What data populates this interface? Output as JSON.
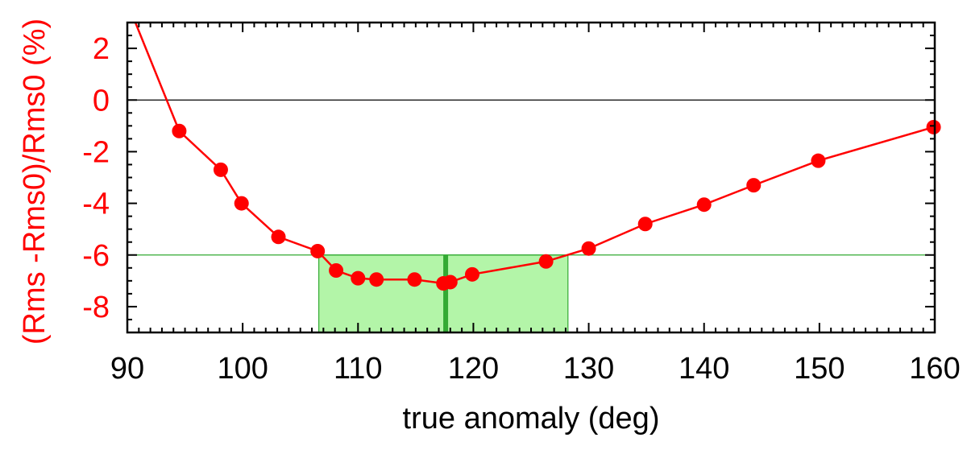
{
  "chart_data": {
    "type": "line",
    "title": "",
    "xlabel": "true anomaly (deg)",
    "ylabel": "(Rms -Rms0)/Rms0 (%)",
    "xlim": [
      90,
      160
    ],
    "ylim": [
      -9,
      3
    ],
    "x_ticks": [
      90,
      100,
      110,
      120,
      130,
      140,
      150,
      160
    ],
    "y_ticks": [
      2,
      0,
      -2,
      -4,
      -6,
      -8
    ],
    "grid": false,
    "legend": "none",
    "colors": {
      "series": "#ff0000",
      "ylabel": "#ff0000",
      "band_fill": "#b3f5a8",
      "band_edge": "#33aa33",
      "best_line": "#33aa33",
      "zero_line": "#000000"
    },
    "series": [
      {
        "x": [
          90.7,
          94.5,
          98.1,
          99.9,
          103.1,
          106.5,
          108.1,
          110.0,
          111.6,
          114.9,
          117.4,
          118.0,
          119.9,
          126.3,
          130.0,
          134.9,
          140.0,
          144.3,
          149.9,
          159.9
        ],
        "y": [
          3.0,
          -1.2,
          -2.7,
          -4.0,
          -5.3,
          -5.85,
          -6.6,
          -6.9,
          -6.95,
          -6.95,
          -7.1,
          -7.05,
          -6.75,
          -6.25,
          -5.75,
          -4.8,
          -4.05,
          -3.3,
          -2.35,
          -1.05
        ],
        "marker": "circle"
      }
    ],
    "annotations": {
      "zero_line_y": 0,
      "threshold_line_y": -6,
      "band_x": [
        106.6,
        128.2
      ],
      "best_fit_x": 117.6
    }
  }
}
